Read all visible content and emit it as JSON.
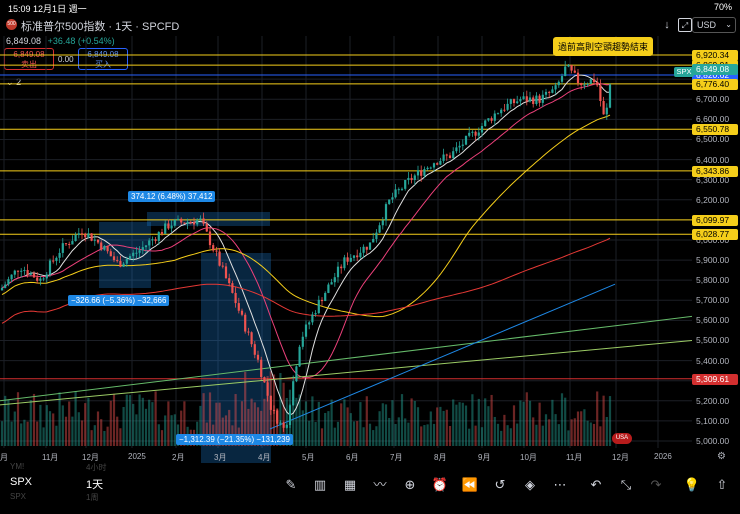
{
  "status": {
    "time": "15:09",
    "date": "12月1日 週一",
    "battery": "70%"
  },
  "header": {
    "title": "标准普尔500指数 · 1天 · SPCFD",
    "badge": "500",
    "currency": "USD"
  },
  "quote": {
    "price": "6,849.08",
    "change": "+36.48 (+0.54%)"
  },
  "trade": {
    "sell_price": "6,849.08",
    "sell_label": "卖出",
    "buy_price": "6,849.08",
    "buy_label": "买入",
    "spread": "0.00"
  },
  "indicators": {
    "count": "2"
  },
  "annotation": "過前高則空頭趨勢結束",
  "price_axis": {
    "ticks": [
      "6,800.00",
      "6,700.00",
      "6,600.00",
      "6,500.00",
      "6,400.00",
      "6,300.00",
      "6,200.00",
      "6,100.00",
      "6,000.00",
      "5,900.00",
      "5,800.00",
      "5,700.00",
      "5,600.00",
      "5,500.00",
      "5,400.00",
      "5,300.00",
      "5,200.00",
      "5,100.00",
      "5,000.00"
    ],
    "levels": [
      "6,920.34",
      "6,869.91",
      "6,820.62",
      "6,776.40",
      "6,550.78",
      "6,343.86",
      "6,099.97",
      "6,028.77",
      "5,309.61"
    ],
    "current": "6,849.08",
    "symbol_tag": "SPX"
  },
  "time_axis": {
    "labels": [
      "月",
      "11月",
      "12月",
      "2025",
      "2月",
      "3月",
      "4月",
      "5月",
      "6月",
      "7月",
      "8月",
      "9月",
      "10月",
      "11月",
      "12月",
      "2026"
    ]
  },
  "measurements": [
    "374.12 (6.48%) 37,412",
    "−326.66 (−5.36%) −32,666",
    "−1,312.39 (−21.35%) −131,239"
  ],
  "bottom": {
    "symbol": "SPX",
    "interval": "1天",
    "ghost_left": "YM!",
    "ghost_right": "4小时",
    "ghost_sym2": "SPX",
    "ghost_int2": "1周"
  },
  "colors": {
    "up": "#26a69a",
    "down": "#ef5350",
    "level": "#f5ce1a",
    "accent": "#2962ff"
  }
}
